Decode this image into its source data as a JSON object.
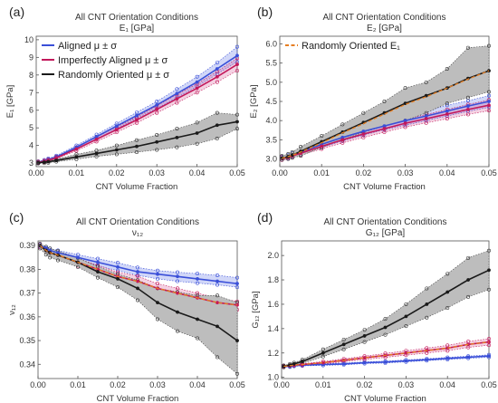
{
  "colors": {
    "aligned": "#3a4fd8",
    "imperfect": "#c2185b",
    "random": "#1a1a1a",
    "fit": "#e67e22",
    "band_random": "#bdbdbd"
  },
  "chart_data": [
    {
      "panel": "(a)",
      "type": "line",
      "title": "All CNT Orientation Conditions",
      "subtitle": "E₁ [GPa]",
      "xlabel": "CNT Volume Fraction",
      "ylabel": "E₁ [GPa]",
      "xlim": [
        0,
        0.05
      ],
      "ylim": [
        2.8,
        10.2
      ],
      "xticks": [
        0.0,
        0.01,
        0.02,
        0.03,
        0.04,
        0.05
      ],
      "xtick_labels": [
        "0.00",
        "0.01",
        "0.02",
        "0.03",
        "0.04",
        "0.05"
      ],
      "yticks": [
        3,
        4,
        5,
        6,
        7,
        8,
        9,
        10
      ],
      "x": [
        0.0005,
        0.002,
        0.003,
        0.005,
        0.01,
        0.015,
        0.02,
        0.025,
        0.03,
        0.035,
        0.04,
        0.045,
        0.05
      ],
      "legend": {
        "position": "top-left",
        "entries": [
          {
            "label": "Aligned μ ± σ",
            "series": "aligned"
          },
          {
            "label": "Imperfectly Aligned μ ± σ",
            "series": "imperfect"
          },
          {
            "label": "Randomly Oriented μ ± σ",
            "series": "random"
          }
        ]
      },
      "series": [
        {
          "key": "aligned",
          "mean": [
            3.05,
            3.12,
            3.2,
            3.35,
            3.9,
            4.5,
            5.1,
            5.7,
            6.3,
            6.95,
            7.6,
            8.35,
            9.1
          ],
          "lo": [
            3.0,
            3.07,
            3.15,
            3.28,
            3.8,
            4.38,
            4.95,
            5.55,
            6.1,
            6.72,
            7.35,
            8.05,
            8.75
          ],
          "hi": [
            3.1,
            3.18,
            3.26,
            3.42,
            4.0,
            4.62,
            5.25,
            5.88,
            6.5,
            7.2,
            7.9,
            8.7,
            9.6
          ]
        },
        {
          "key": "imperfect",
          "mean": [
            3.04,
            3.1,
            3.16,
            3.3,
            3.8,
            4.35,
            4.9,
            5.45,
            6.05,
            6.65,
            7.25,
            7.9,
            8.6
          ],
          "lo": [
            2.99,
            3.05,
            3.11,
            3.24,
            3.7,
            4.22,
            4.75,
            5.28,
            5.85,
            6.42,
            7.0,
            7.6,
            8.25
          ],
          "hi": [
            3.09,
            3.15,
            3.22,
            3.37,
            3.9,
            4.48,
            5.05,
            5.62,
            6.25,
            6.9,
            7.5,
            8.2,
            8.95
          ]
        },
        {
          "key": "random",
          "mean": [
            3.02,
            3.05,
            3.08,
            3.15,
            3.35,
            3.55,
            3.75,
            3.95,
            4.2,
            4.45,
            4.7,
            5.15,
            5.35
          ],
          "lo": [
            2.98,
            3.0,
            3.02,
            3.08,
            3.22,
            3.38,
            3.5,
            3.62,
            3.75,
            3.9,
            4.1,
            4.4,
            4.95
          ],
          "hi": [
            3.07,
            3.1,
            3.14,
            3.22,
            3.5,
            3.72,
            4.0,
            4.3,
            4.6,
            4.95,
            5.3,
            5.85,
            5.75
          ]
        }
      ]
    },
    {
      "panel": "(b)",
      "type": "line",
      "title": "All CNT Orientation Conditions",
      "subtitle": "E₂ [GPa]",
      "xlabel": "CNT Volume Fraction",
      "ylabel": "E₂ [GPa]",
      "xlim": [
        0,
        0.05
      ],
      "ylim": [
        2.8,
        6.2
      ],
      "xticks": [
        0.0,
        0.01,
        0.02,
        0.03,
        0.04,
        0.05
      ],
      "xtick_labels": [
        "0.00",
        "0.01",
        "0.02",
        "0.03",
        "0.04",
        "0.05"
      ],
      "yticks": [
        3.0,
        3.5,
        4.0,
        4.5,
        5.0,
        5.5,
        6.0
      ],
      "ytick_labels": [
        "3.0",
        "3.5",
        "4.0",
        "4.5",
        "5.0",
        "5.5",
        "6.0"
      ],
      "x": [
        0.0005,
        0.002,
        0.003,
        0.005,
        0.01,
        0.015,
        0.02,
        0.025,
        0.03,
        0.035,
        0.04,
        0.045,
        0.05
      ],
      "legend": {
        "position": "top-left",
        "entries": [
          {
            "label": "Randomly Oriented E₁",
            "series": "fit"
          }
        ]
      },
      "series": [
        {
          "key": "aligned",
          "mean": [
            3.02,
            3.06,
            3.1,
            3.18,
            3.38,
            3.56,
            3.72,
            3.86,
            4.0,
            4.12,
            4.25,
            4.38,
            4.5
          ],
          "lo": [
            2.98,
            3.02,
            3.06,
            3.12,
            3.3,
            3.47,
            3.62,
            3.76,
            3.88,
            4.0,
            4.12,
            4.24,
            4.35
          ],
          "hi": [
            3.06,
            3.1,
            3.15,
            3.24,
            3.46,
            3.65,
            3.82,
            3.96,
            4.12,
            4.25,
            4.4,
            4.52,
            4.65
          ]
        },
        {
          "key": "imperfect",
          "mean": [
            3.01,
            3.04,
            3.08,
            3.15,
            3.33,
            3.5,
            3.65,
            3.79,
            3.93,
            4.05,
            4.17,
            4.29,
            4.4
          ],
          "lo": [
            2.97,
            3.0,
            3.04,
            3.1,
            3.26,
            3.42,
            3.56,
            3.7,
            3.83,
            3.94,
            4.05,
            4.16,
            4.26
          ],
          "hi": [
            3.05,
            3.08,
            3.12,
            3.2,
            3.4,
            3.58,
            3.74,
            3.88,
            4.03,
            4.16,
            4.29,
            4.42,
            4.54
          ]
        },
        {
          "key": "random",
          "mean": [
            3.02,
            3.06,
            3.1,
            3.2,
            3.45,
            3.7,
            3.95,
            4.2,
            4.45,
            4.65,
            4.85,
            5.1,
            5.3
          ],
          "lo": [
            2.98,
            3.0,
            3.03,
            3.08,
            3.3,
            3.5,
            3.7,
            3.85,
            4.0,
            4.2,
            4.45,
            4.6,
            4.75
          ],
          "hi": [
            3.08,
            3.13,
            3.18,
            3.32,
            3.6,
            3.9,
            4.2,
            4.5,
            4.85,
            5.0,
            5.35,
            5.9,
            5.95
          ]
        },
        {
          "key": "fit",
          "dashed": true,
          "mean": [
            3.02,
            3.06,
            3.1,
            3.18,
            3.42,
            3.68,
            3.92,
            4.17,
            4.42,
            4.62,
            4.85,
            5.08,
            5.3
          ]
        }
      ]
    },
    {
      "panel": "(c)",
      "type": "line",
      "title": "All CNT Orientation Conditions",
      "subtitle": "ν₁₂",
      "xlabel": "CNT Volume Fraction",
      "ylabel": "ν₁₂",
      "xlim": [
        0,
        0.05
      ],
      "ylim": [
        0.334,
        0.392
      ],
      "xticks": [
        0.0,
        0.01,
        0.02,
        0.03,
        0.04,
        0.05
      ],
      "xtick_labels": [
        "0.00",
        "0.01",
        "0.02",
        "0.03",
        "0.04",
        "0.05"
      ],
      "yticks": [
        0.34,
        0.35,
        0.36,
        0.37,
        0.38,
        0.39
      ],
      "ytick_labels": [
        "0.34",
        "0.35",
        "0.36",
        "0.37",
        "0.38",
        "0.39"
      ],
      "x": [
        0.0005,
        0.002,
        0.003,
        0.005,
        0.01,
        0.015,
        0.02,
        0.025,
        0.03,
        0.035,
        0.04,
        0.045,
        0.05
      ],
      "series": [
        {
          "key": "aligned",
          "mean": [
            0.39,
            0.389,
            0.388,
            0.387,
            0.385,
            0.383,
            0.381,
            0.379,
            0.378,
            0.377,
            0.376,
            0.375,
            0.374
          ],
          "lo": [
            0.3895,
            0.3885,
            0.3872,
            0.386,
            0.384,
            0.3815,
            0.3795,
            0.3775,
            0.376,
            0.375,
            0.3742,
            0.3735,
            0.3725
          ],
          "hi": [
            0.3905,
            0.3895,
            0.3888,
            0.388,
            0.3862,
            0.3845,
            0.3828,
            0.3808,
            0.3795,
            0.3788,
            0.3782,
            0.3775,
            0.3765
          ]
        },
        {
          "key": "imperfect",
          "mean": [
            0.39,
            0.388,
            0.387,
            0.386,
            0.383,
            0.38,
            0.377,
            0.375,
            0.372,
            0.37,
            0.368,
            0.366,
            0.365
          ],
          "lo": [
            0.3893,
            0.3872,
            0.386,
            0.3848,
            0.3815,
            0.3782,
            0.3752,
            0.3728,
            0.37,
            0.368,
            0.366,
            0.364,
            0.363
          ],
          "hi": [
            0.3907,
            0.3888,
            0.3878,
            0.3872,
            0.3845,
            0.3818,
            0.3788,
            0.3772,
            0.374,
            0.372,
            0.37,
            0.368,
            0.3665
          ]
        },
        {
          "key": "random",
          "mean": [
            0.39,
            0.388,
            0.387,
            0.386,
            0.383,
            0.379,
            0.376,
            0.372,
            0.366,
            0.362,
            0.359,
            0.356,
            0.35
          ],
          "lo": [
            0.3888,
            0.3862,
            0.385,
            0.3838,
            0.381,
            0.3765,
            0.3725,
            0.367,
            0.359,
            0.354,
            0.351,
            0.343,
            0.336
          ],
          "hi": [
            0.3908,
            0.3895,
            0.3888,
            0.3878,
            0.3848,
            0.3812,
            0.378,
            0.3755,
            0.372,
            0.3705,
            0.369,
            0.369,
            0.366
          ]
        },
        {
          "key": "fit",
          "dashed": true,
          "mean": [
            0.39,
            0.388,
            0.387,
            0.386,
            0.383,
            0.38,
            0.377,
            0.375,
            0.372,
            0.37,
            0.368,
            0.366,
            0.365
          ]
        }
      ]
    },
    {
      "panel": "(d)",
      "type": "line",
      "title": "All CNT Orientation Conditions",
      "subtitle": "G₁₂ [GPa]",
      "xlabel": "CNT Volume Fraction",
      "ylabel": "G₁₂ [GPa]",
      "xlim": [
        0,
        0.05
      ],
      "ylim": [
        0.99,
        2.12
      ],
      "xticks": [
        0.0,
        0.01,
        0.02,
        0.03,
        0.04,
        0.05
      ],
      "xtick_labels": [
        "0.00",
        "0.01",
        "0.02",
        "0.03",
        "0.04",
        "0.05"
      ],
      "yticks": [
        1.0,
        1.2,
        1.4,
        1.6,
        1.8,
        2.0
      ],
      "ytick_labels": [
        "1.0",
        "1.2",
        "1.4",
        "1.6",
        "1.8",
        "2.0"
      ],
      "x": [
        0.0005,
        0.002,
        0.003,
        0.005,
        0.01,
        0.015,
        0.02,
        0.025,
        0.03,
        0.035,
        0.04,
        0.045,
        0.05
      ],
      "series": [
        {
          "key": "aligned",
          "mean": [
            1.09,
            1.09,
            1.095,
            1.1,
            1.105,
            1.11,
            1.12,
            1.125,
            1.135,
            1.145,
            1.155,
            1.165,
            1.175
          ],
          "lo": [
            1.085,
            1.085,
            1.09,
            1.094,
            1.098,
            1.103,
            1.113,
            1.117,
            1.127,
            1.137,
            1.146,
            1.156,
            1.165
          ],
          "hi": [
            1.095,
            1.095,
            1.1,
            1.106,
            1.112,
            1.117,
            1.127,
            1.133,
            1.143,
            1.153,
            1.164,
            1.174,
            1.185
          ]
        },
        {
          "key": "imperfect",
          "mean": [
            1.09,
            1.095,
            1.1,
            1.105,
            1.12,
            1.14,
            1.16,
            1.18,
            1.2,
            1.22,
            1.24,
            1.27,
            1.29
          ],
          "lo": [
            1.085,
            1.09,
            1.094,
            1.098,
            1.11,
            1.128,
            1.146,
            1.164,
            1.182,
            1.2,
            1.218,
            1.246,
            1.264
          ],
          "hi": [
            1.095,
            1.1,
            1.106,
            1.112,
            1.13,
            1.152,
            1.174,
            1.196,
            1.218,
            1.24,
            1.262,
            1.294,
            1.316
          ]
        },
        {
          "key": "random",
          "mean": [
            1.09,
            1.1,
            1.11,
            1.13,
            1.2,
            1.27,
            1.34,
            1.41,
            1.5,
            1.6,
            1.7,
            1.8,
            1.88
          ],
          "lo": [
            1.082,
            1.09,
            1.1,
            1.115,
            1.17,
            1.23,
            1.29,
            1.35,
            1.42,
            1.49,
            1.57,
            1.66,
            1.72
          ],
          "hi": [
            1.098,
            1.11,
            1.12,
            1.145,
            1.23,
            1.31,
            1.39,
            1.48,
            1.6,
            1.73,
            1.85,
            1.98,
            2.04
          ]
        },
        {
          "key": "fit",
          "dashed": true,
          "mean": [
            1.09,
            1.095,
            1.1,
            1.105,
            1.12,
            1.14,
            1.16,
            1.18,
            1.2,
            1.22,
            1.24,
            1.27,
            1.29
          ]
        }
      ]
    }
  ]
}
